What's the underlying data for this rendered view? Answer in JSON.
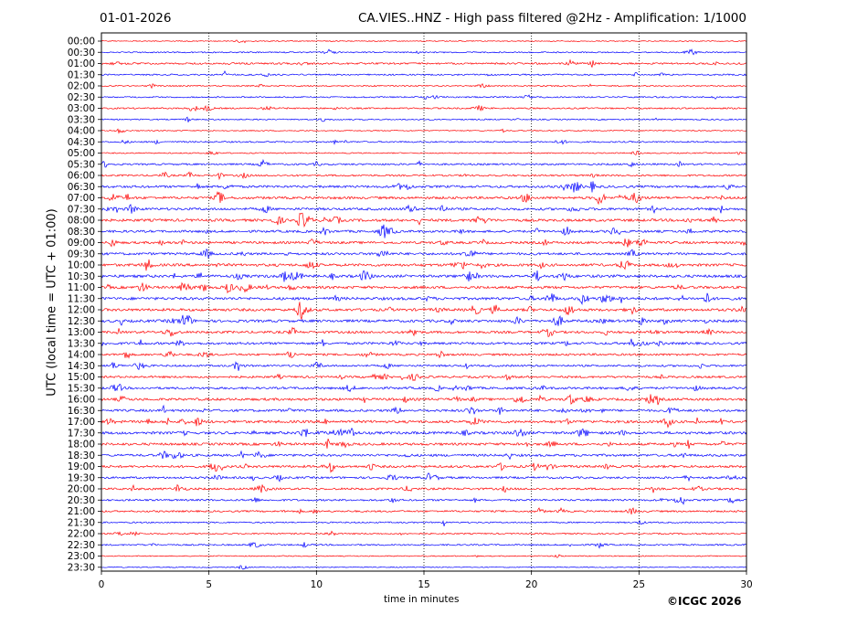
{
  "header": {
    "date": "01-01-2026",
    "title": "CA.VIES..HNZ - High pass filtered @2Hz - Amplification: 1/1000"
  },
  "footer": {
    "copyright": "©ICGC 2026"
  },
  "colors": {
    "trace_a": "#ff0000",
    "trace_b": "#0000ff",
    "grid": "#000000",
    "axes": "#000000"
  },
  "chart_data": {
    "type": "line",
    "title": "CA.VIES..HNZ - High pass filtered @2Hz - Amplification: 1/1000",
    "xlabel": "time in minutes",
    "ylabel": "UTC (local time = UTC + 01:00)",
    "xlim": [
      0,
      30
    ],
    "x_ticks": [
      0,
      5,
      10,
      15,
      20,
      25,
      30
    ],
    "grid": "vertical dotted lines at 5, 10, 15, 20, 25",
    "legend": "none",
    "row_colors": [
      "#ff0000",
      "#0000ff"
    ],
    "rows": [
      "00:00",
      "00:30",
      "01:00",
      "01:30",
      "02:00",
      "02:30",
      "03:00",
      "03:30",
      "04:00",
      "04:30",
      "05:00",
      "05:30",
      "06:00",
      "06:30",
      "07:00",
      "07:30",
      "08:00",
      "08:30",
      "09:00",
      "09:30",
      "10:00",
      "10:30",
      "11:00",
      "11:30",
      "12:00",
      "12:30",
      "13:00",
      "13:30",
      "14:00",
      "14:30",
      "15:00",
      "15:30",
      "16:00",
      "16:30",
      "17:00",
      "17:30",
      "18:00",
      "18:30",
      "19:00",
      "19:30",
      "20:00",
      "20:30",
      "21:00",
      "21:30",
      "22:00",
      "22:30",
      "23:00",
      "23:30"
    ],
    "activity": [
      0.1,
      0.25,
      0.45,
      0.35,
      0.25,
      0.3,
      0.35,
      0.25,
      0.15,
      0.35,
      0.2,
      0.45,
      0.45,
      0.7,
      0.75,
      0.75,
      0.8,
      0.7,
      0.7,
      0.7,
      0.8,
      0.85,
      0.8,
      0.85,
      0.8,
      0.8,
      0.7,
      0.7,
      0.6,
      0.55,
      0.6,
      0.65,
      0.75,
      0.7,
      0.8,
      0.8,
      0.75,
      0.7,
      0.7,
      0.6,
      0.6,
      0.5,
      0.45,
      0.3,
      0.3,
      0.35,
      0.15,
      0.1
    ]
  }
}
